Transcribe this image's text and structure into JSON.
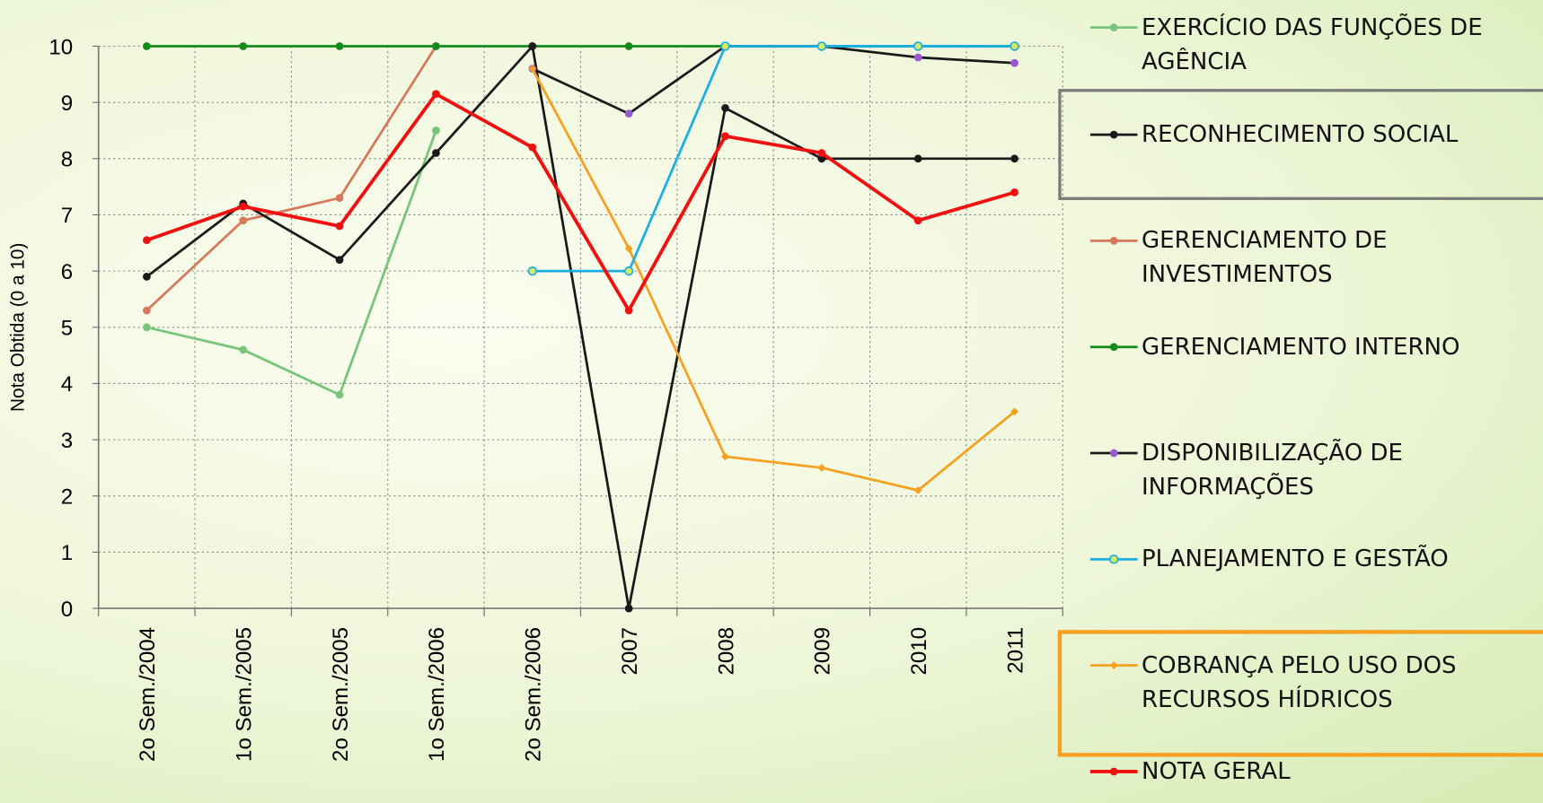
{
  "chart_data": {
    "type": "line",
    "y_label": "Nota Obtida (0 a 10)",
    "categories": [
      "2o Sem./2004",
      "1o Sem./2005",
      "2o Sem./2005",
      "1o Sem./2006",
      "2o Sem./2006",
      "2007",
      "2008",
      "2009",
      "2010",
      "2011"
    ],
    "ylim": [
      0,
      10
    ],
    "yticks": [
      0,
      1,
      2,
      3,
      4,
      5,
      6,
      7,
      8,
      9,
      10
    ],
    "grid": true,
    "legend": "right",
    "series": [
      {
        "name": "EXERCÍCIO DAS FUNÇÕES DE AGÊNCIA",
        "color": "#77c47a",
        "marker_color": "#77c47a",
        "values": [
          5.0,
          4.6,
          3.8,
          8.5,
          null,
          null,
          null,
          null,
          null,
          null
        ]
      },
      {
        "name": "RECONHECIMENTO SOCIAL",
        "color": "#1a1a1a",
        "marker_color": "#1a1a1a",
        "values": [
          5.9,
          7.2,
          6.2,
          8.1,
          10,
          0,
          8.9,
          8.0,
          8.0,
          8.0
        ]
      },
      {
        "name": "GERENCIAMENTO DE INVESTIMENTOS",
        "color": "#d5795a",
        "marker_color": "#d5795a",
        "values": [
          5.3,
          6.9,
          7.3,
          10,
          null,
          null,
          null,
          null,
          null,
          null
        ]
      },
      {
        "name": "GERENCIAMENTO INTERNO",
        "color": "#138a1c",
        "marker_color": "#138a1c",
        "values": [
          10,
          10,
          10,
          10,
          10,
          10,
          10,
          10,
          10,
          10
        ]
      },
      {
        "name": "DISPONIBILIZAÇÃO DE INFORMAÇÕES",
        "color": "#1a1a1a",
        "marker_color": "#9b59d0",
        "values": [
          null,
          null,
          null,
          null,
          9.6,
          8.8,
          10,
          10,
          9.8,
          9.7
        ]
      },
      {
        "name": "PLANEJAMENTO E GESTÃO",
        "color": "#1aaee6",
        "marker_color": "#d8e860",
        "values": [
          null,
          null,
          null,
          null,
          6,
          6,
          10,
          10,
          10,
          10
        ]
      },
      {
        "name": "COBRANÇA PELO USO DOS RECURSOS HÍDRICOS",
        "color": "#f5a01e",
        "marker_color": "#f5a01e",
        "values": [
          null,
          null,
          null,
          null,
          9.6,
          6.4,
          2.7,
          2.5,
          2.1,
          3.5
        ]
      },
      {
        "name": "NOTA GERAL",
        "color": "#f01010",
        "marker_color": "#f01010",
        "values": [
          6.55,
          7.15,
          6.8,
          9.15,
          8.2,
          5.3,
          8.4,
          8.1,
          6.9,
          7.4
        ]
      }
    ]
  }
}
